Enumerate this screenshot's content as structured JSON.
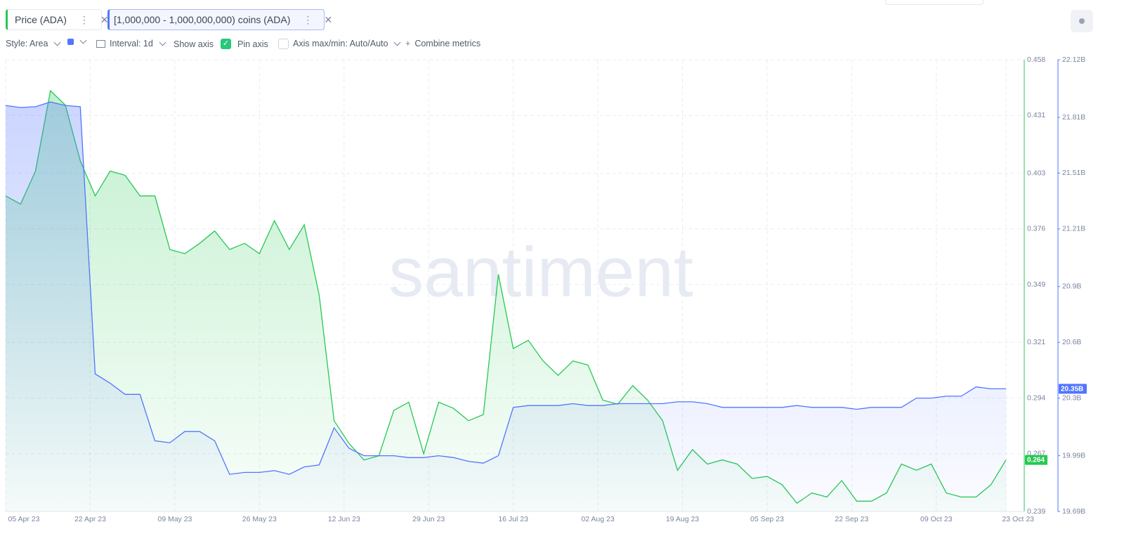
{
  "toolbar": {
    "style": "Style: Area",
    "interval": "Interval: 1d",
    "show_axis": "Show axis",
    "pin_axis": "Pin axis",
    "axis_range": "Axis max/min: Auto/Auto",
    "combine": "Combine metrics"
  },
  "watermark": "santiment",
  "chart_data": {
    "type": "area",
    "x": [
      "05 Apr 23",
      "08 Apr 23",
      "11 Apr 23",
      "14 Apr 23",
      "17 Apr 23",
      "20 Apr 23",
      "23 Apr 23",
      "26 Apr 23",
      "29 Apr 23",
      "02 May 23",
      "05 May 23",
      "08 May 23",
      "11 May 23",
      "14 May 23",
      "17 May 23",
      "20 May 23",
      "23 May 23",
      "26 May 23",
      "29 May 23",
      "01 Jun 23",
      "04 Jun 23",
      "07 Jun 23",
      "10 Jun 23",
      "13 Jun 23",
      "16 Jun 23",
      "19 Jun 23",
      "22 Jun 23",
      "25 Jun 23",
      "28 Jun 23",
      "01 Jul 23",
      "04 Jul 23",
      "07 Jul 23",
      "10 Jul 23",
      "13 Jul 23",
      "16 Jul 23",
      "19 Jul 23",
      "22 Jul 23",
      "25 Jul 23",
      "28 Jul 23",
      "31 Jul 23",
      "03 Aug 23",
      "06 Aug 23",
      "09 Aug 23",
      "12 Aug 23",
      "15 Aug 23",
      "18 Aug 23",
      "21 Aug 23",
      "24 Aug 23",
      "27 Aug 23",
      "30 Aug 23",
      "02 Sep 23",
      "05 Sep 23",
      "08 Sep 23",
      "11 Sep 23",
      "14 Sep 23",
      "17 Sep 23",
      "20 Sep 23",
      "23 Sep 23",
      "26 Sep 23",
      "29 Sep 23",
      "02 Oct 23",
      "05 Oct 23",
      "08 Oct 23",
      "11 Oct 23",
      "14 Oct 23",
      "17 Oct 23",
      "20 Oct 23",
      "23 Oct 23"
    ],
    "series": [
      {
        "name": "Price (ADA)",
        "color": "#26c953",
        "axis": "y",
        "last_label": "0.264",
        "values": [
          0.392,
          0.388,
          0.404,
          0.443,
          0.436,
          0.409,
          0.392,
          0.404,
          0.402,
          0.392,
          0.392,
          0.366,
          0.364,
          0.369,
          0.375,
          0.366,
          0.369,
          0.364,
          0.38,
          0.366,
          0.378,
          0.344,
          0.283,
          0.272,
          0.264,
          0.266,
          0.288,
          0.292,
          0.267,
          0.292,
          0.289,
          0.283,
          0.286,
          0.354,
          0.318,
          0.322,
          0.312,
          0.305,
          0.312,
          0.31,
          0.293,
          0.291,
          0.3,
          0.293,
          0.283,
          0.259,
          0.269,
          0.262,
          0.264,
          0.262,
          0.255,
          0.256,
          0.252,
          0.243,
          0.248,
          0.246,
          0.254,
          0.244,
          0.244,
          0.248,
          0.262,
          0.259,
          0.262,
          0.248,
          0.246,
          0.246,
          0.252,
          0.264
        ]
      },
      {
        "name": "[1,000,000 - 1,000,000,000) coins (ADA)",
        "color": "#5275ff",
        "axis": "y2",
        "last_label": "20.35B",
        "values": [
          21.874,
          21.863,
          21.867,
          21.893,
          21.874,
          21.867,
          20.43,
          20.38,
          20.32,
          20.32,
          20.07,
          20.06,
          20.12,
          20.12,
          20.07,
          19.89,
          19.9,
          19.9,
          19.91,
          19.89,
          19.93,
          19.94,
          20.14,
          20.03,
          19.99,
          19.99,
          19.99,
          19.98,
          19.98,
          19.99,
          19.98,
          19.96,
          19.95,
          19.99,
          20.25,
          20.26,
          20.26,
          20.26,
          20.27,
          20.26,
          20.26,
          20.27,
          20.27,
          20.27,
          20.27,
          20.28,
          20.28,
          20.27,
          20.25,
          20.25,
          20.25,
          20.25,
          20.25,
          20.26,
          20.25,
          20.25,
          20.25,
          20.24,
          20.25,
          20.25,
          20.25,
          20.3,
          20.3,
          20.31,
          20.31,
          20.36,
          20.35,
          20.35
        ]
      }
    ],
    "ylim": [
      0.239,
      0.458
    ],
    "yticks": [
      0.458,
      0.431,
      0.403,
      0.376,
      0.349,
      0.321,
      0.294,
      0.267,
      0.239
    ],
    "y2lim": [
      19.69,
      22.12
    ],
    "y2ticks": [
      {
        "value": 22.12,
        "label": "22.12B"
      },
      {
        "value": 21.81,
        "label": "21.81B"
      },
      {
        "value": 21.51,
        "label": "21.51B"
      },
      {
        "value": 21.21,
        "label": "21.21B"
      },
      {
        "value": 20.9,
        "label": "20.9B"
      },
      {
        "value": 20.6,
        "label": "20.6B"
      },
      {
        "value": 20.3,
        "label": "20.3B"
      },
      {
        "value": 19.99,
        "label": "19.99B"
      },
      {
        "value": 19.69,
        "label": "19.69B"
      }
    ],
    "xticks": [
      "05 Apr 23",
      "22 Apr 23",
      "09 May 23",
      "26 May 23",
      "12 Jun 23",
      "29 Jun 23",
      "16 Jul 23",
      "02 Aug 23",
      "19 Aug 23",
      "05 Sep 23",
      "22 Sep 23",
      "09 Oct 23",
      "23 Oct 23"
    ],
    "grid": true
  }
}
